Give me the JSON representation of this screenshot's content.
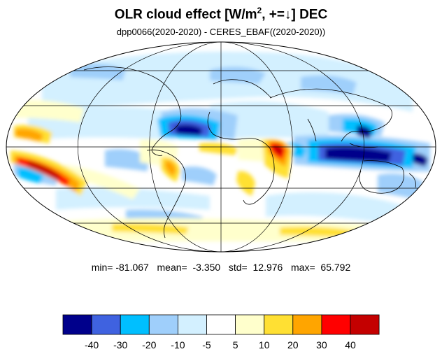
{
  "title": {
    "prefix": "OLR cloud effect [W/m",
    "exponent": "2",
    "suffix": ", +=↓]  DEC"
  },
  "subtitle": "dpp0066(2020-2020) - CERES_EBAF((2020-2020))",
  "stats": {
    "min_label": "min=",
    "min": "-81.067",
    "mean_label": "mean=",
    "mean": "-3.350",
    "std_label": "std=",
    "std": "12.976",
    "max_label": "max=",
    "max": "65.792"
  },
  "map": {
    "projection": "mollweide",
    "ocean_background": "#ffffff",
    "coast_color": "#000000",
    "grid_color": "#000000"
  },
  "colorbar": {
    "colors": [
      "#00008b",
      "#3f62e0",
      "#00bfff",
      "#9fcffb",
      "#d3f0ff",
      "#ffffff",
      "#ffffcc",
      "#ffe033",
      "#ffa500",
      "#ff0000",
      "#c40000"
    ],
    "labels": [
      "-40",
      "-30",
      "-20",
      "-10",
      "-5",
      "5",
      "10",
      "20",
      "30",
      "40"
    ]
  }
}
